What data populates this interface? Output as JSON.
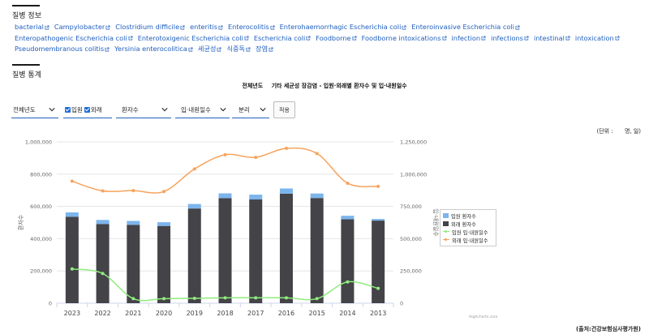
{
  "section_info_title": "질병 정보",
  "tags": [
    "bacterial",
    "Campylobacter",
    "Clostridium difficile",
    "enteritis",
    "Enterocolitis",
    "Enterohaemorrhagic Escherichia coli",
    "Enteroinvasive Escherichia coli",
    "Enteropathogenic Escherichia coli",
    "Enterotoxigenic Escherichia coli",
    "Escherichia coli",
    "Foodborne",
    "Foodborne intoxications",
    "infection",
    "infections",
    "intestinal",
    "intoxication",
    "Pseudomembranous colitis",
    "Yersinia enterocolitica",
    "세균성",
    "식중독",
    "장염"
  ],
  "section_stats_title": "질병 통계",
  "chart_heading": {
    "category": "전체년도",
    "subject": "기타 세균성 장감염 - 입원·외래별 환자수 및 입·내원일수"
  },
  "controls": {
    "year": "전체년도",
    "inpatient_label": "입원",
    "outpatient_label": "외래",
    "inpatient_checked": true,
    "outpatient_checked": true,
    "metric": "환자수",
    "unit_select": "입·내원일수",
    "class_select": "분리",
    "apply": "적용"
  },
  "unit_label": "(단위 :",
  "unit_value": "명, 일)",
  "credit": "Highcharts.com",
  "source": "(출처:건강보험심사평가원)",
  "colors": {
    "inpatient_bar": "#7cb5ec",
    "outpatient_bar": "#434348",
    "inpatient_line": "#90ed7d",
    "outpatient_line": "#f7a35c",
    "link": "#1f5fbf"
  },
  "chart_data": {
    "type": "bar",
    "categories": [
      "2023",
      "2022",
      "2021",
      "2020",
      "2019",
      "2018",
      "2017",
      "2016",
      "2015",
      "2014",
      "2013"
    ],
    "y_left": {
      "label": "환자수",
      "ticks": [
        "0",
        "200,000",
        "400,000",
        "600,000",
        "800,000",
        "1,000,000"
      ],
      "range": [
        0,
        1000000
      ]
    },
    "y_right": {
      "label": "입·내원일수",
      "ticks": [
        "0",
        "250,000",
        "500,000",
        "750,000",
        "1,000,000",
        "1,250,000"
      ],
      "range": [
        0,
        1250000
      ]
    },
    "series": [
      {
        "name": "입원 환자수",
        "type": "stacked-bar",
        "axis": "left",
        "values": [
          27000,
          25000,
          24000,
          23000,
          28000,
          30000,
          30000,
          32000,
          28000,
          22000,
          10000
        ]
      },
      {
        "name": "외래 환자수",
        "type": "stacked-bar",
        "axis": "left",
        "values": [
          536000,
          491000,
          486000,
          479000,
          587000,
          651000,
          643000,
          679000,
          652000,
          520000,
          512000
        ]
      },
      {
        "name": "입원 입·내원일수",
        "type": "line",
        "axis": "right",
        "values": [
          265000,
          230000,
          35000,
          35000,
          38000,
          42000,
          42000,
          42000,
          35000,
          165000,
          115000
        ]
      },
      {
        "name": "외래 입·내원일수",
        "type": "line",
        "axis": "right",
        "values": [
          945000,
          870000,
          872000,
          865000,
          1040000,
          1150000,
          1130000,
          1200000,
          1160000,
          930000,
          905000
        ]
      }
    ],
    "legend": "right",
    "grid": true
  }
}
